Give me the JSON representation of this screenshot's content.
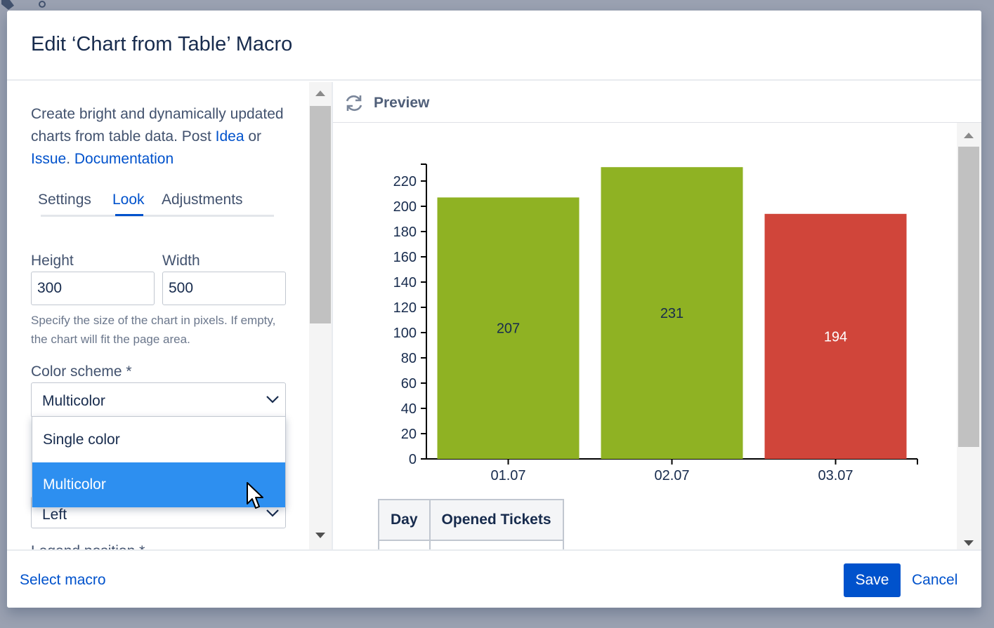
{
  "dialog": {
    "title": "Edit ‘Chart from Table’ Macro"
  },
  "left": {
    "intro_text": "Create bright and dynamically updated charts from table data. Post",
    "link_idea": "Idea",
    "word_or": "or",
    "link_issue": "Issue",
    "link_docs": "Documentation",
    "tabs": [
      {
        "label": "Settings",
        "active": false
      },
      {
        "label": "Look",
        "active": true
      },
      {
        "label": "Adjustments",
        "active": false
      }
    ],
    "height_label": "Height",
    "height_value": "300",
    "width_label": "Width",
    "width_value": "500",
    "size_help": "Specify the size of the chart in pixels. If empty, the chart will fit the page area.",
    "color_scheme_label": "Color scheme *",
    "color_scheme_value": "Multicolor",
    "dropdown_options": [
      "Single color",
      "Multicolor"
    ],
    "dropdown_selected": "Multicolor",
    "next_select_value": "Left",
    "legend_position_label": "Legend position *"
  },
  "preview": {
    "title": "Preview",
    "icon": "refresh-icon",
    "table_headers": [
      "Day",
      "Opened Tickets"
    ]
  },
  "chart_data": {
    "type": "bar",
    "categories": [
      "01.07",
      "02.07",
      "03.07"
    ],
    "values": [
      207,
      231,
      194
    ],
    "colors": [
      "#8fb223",
      "#8fb223",
      "#d0453a"
    ],
    "label_colors": [
      "#172b4d",
      "#172b4d",
      "#ffffff"
    ],
    "ylim": [
      0,
      230
    ],
    "yticks": [
      0,
      20,
      40,
      60,
      80,
      100,
      120,
      140,
      160,
      180,
      200,
      220
    ],
    "title": "",
    "xlabel": "",
    "ylabel": "",
    "grid": false,
    "legend": "none"
  },
  "footer": {
    "select_macro": "Select macro",
    "save": "Save",
    "cancel": "Cancel"
  },
  "colors": {
    "accent": "#0052cc",
    "selected_option": "#2d8ff0"
  }
}
